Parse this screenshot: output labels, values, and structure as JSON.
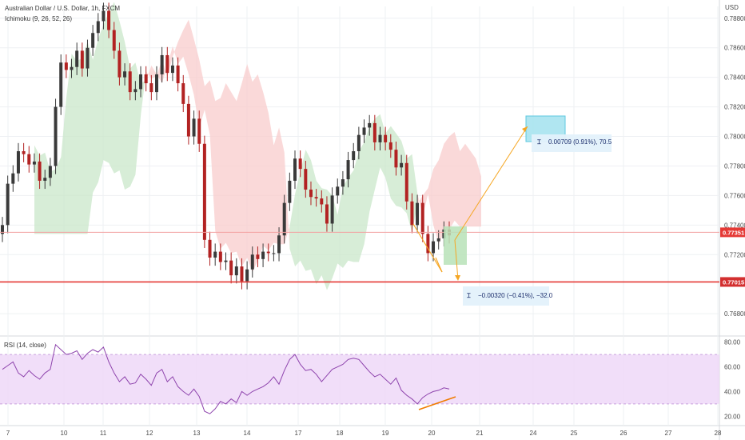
{
  "header": {
    "title": "Australian Dollar / U.S. Dollar, 1h, FXCM",
    "indicator": "Ichimoku (9, 26, 52, 26)",
    "currency": "USD",
    "rsi_label": "RSI (14, close)"
  },
  "colors": {
    "bull": "#3a3a3a",
    "bear": "#b22222",
    "cloud_green": "#c9e7c9",
    "cloud_red": "#f8cccc",
    "support_line": "#e53935",
    "current_line": "#f3a0a0",
    "arrow": "#f5a623",
    "target_box": "#a8e4f0",
    "target_box_edge": "#4dc3dd",
    "entry_box": "#b7e2b7",
    "rsi_line": "#8e44ad",
    "rsi_band": "#efd8f8",
    "grid": "#eef0f3",
    "divergence": "#f07c00"
  },
  "chart_data": [
    {
      "type": "candlestick",
      "name": "price",
      "title": "Australian Dollar / U.S. Dollar, 1h, FXCM",
      "x_ticks": [
        "7",
        "10",
        "11",
        "12",
        "13",
        "14",
        "17",
        "18",
        "19",
        "20",
        "21",
        "24",
        "25",
        "26",
        "27",
        "28"
      ],
      "y_ticks": [
        "0.78800",
        "0.78600",
        "0.78400",
        "0.78200",
        "0.78000",
        "0.77800",
        "0.77600",
        "0.77400",
        "0.77200",
        "0.76800"
      ],
      "ylim": [
        0.7666,
        0.7888
      ],
      "close": [
        0.774,
        0.7768,
        0.7775,
        0.779,
        0.7788,
        0.7781,
        0.7783,
        0.777,
        0.7772,
        0.778,
        0.782,
        0.785,
        0.7845,
        0.7847,
        0.7858,
        0.7846,
        0.786,
        0.787,
        0.7878,
        0.7885,
        0.7872,
        0.7858,
        0.784,
        0.7844,
        0.783,
        0.7832,
        0.7842,
        0.7836,
        0.783,
        0.7842,
        0.7855,
        0.7843,
        0.7848,
        0.7836,
        0.7822,
        0.78,
        0.7812,
        0.7795,
        0.773,
        0.7718,
        0.7722,
        0.7715,
        0.7716,
        0.7706,
        0.7712,
        0.7702,
        0.771,
        0.772,
        0.7717,
        0.7722,
        0.7721,
        0.7721,
        0.7733,
        0.7755,
        0.777,
        0.7785,
        0.7778,
        0.7764,
        0.7759,
        0.7758,
        0.7754,
        0.7741,
        0.776,
        0.7766,
        0.7771,
        0.7784,
        0.779,
        0.7801,
        0.7806,
        0.7809,
        0.7796,
        0.7801,
        0.7796,
        0.7791,
        0.7779,
        0.7782,
        0.7756,
        0.774,
        0.7755,
        0.7734,
        0.7721,
        0.7729,
        0.7731,
        0.7737,
        0.7733
      ],
      "current_price": "0.77351",
      "support_price": "0.77015",
      "annotations": [
        "0.00709 (0.91%), 70.5",
        "−0.00320 (−0.41%), −32.0"
      ]
    },
    {
      "type": "line",
      "name": "RSI (14, close)",
      "y_ticks": [
        "80.00",
        "60.00",
        "40.00",
        "20.00"
      ],
      "ylim": [
        15,
        85
      ],
      "bands": [
        30,
        70
      ],
      "values": [
        58,
        61,
        64,
        55,
        52,
        57,
        53,
        50,
        55,
        58,
        78,
        74,
        70,
        71,
        73,
        66,
        71,
        74,
        72,
        76,
        64,
        55,
        48,
        52,
        46,
        47,
        54,
        50,
        45,
        55,
        58,
        48,
        52,
        44,
        40,
        37,
        42,
        36,
        24,
        22,
        26,
        32,
        30,
        34,
        31,
        40,
        37,
        40,
        42,
        44,
        47,
        52,
        46,
        57,
        66,
        70,
        62,
        57,
        58,
        54,
        48,
        53,
        58,
        60,
        62,
        66,
        67,
        66,
        61,
        56,
        52,
        54,
        50,
        46,
        51,
        41,
        37,
        34,
        30,
        35,
        38,
        40,
        41,
        43,
        42
      ]
    }
  ]
}
